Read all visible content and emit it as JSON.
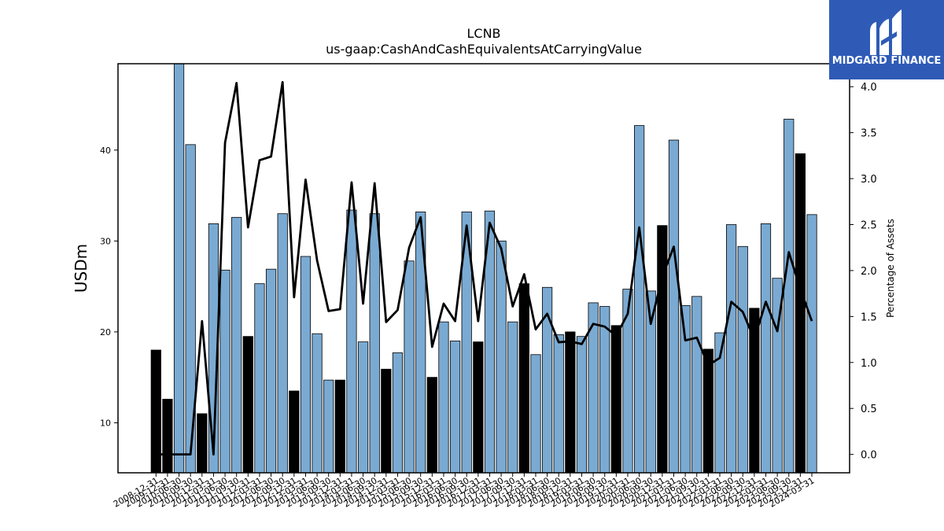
{
  "brand": {
    "name": "MIDGARD FINANCE",
    "bg_color": "#2f5bb7",
    "icon": "midgard-logo-icon"
  },
  "chart_data": {
    "type": "bar",
    "title": "LCNB",
    "subtitle": "us-gaap:CashAndCashEquivalentsAtCarryingValue",
    "ylabel": "USDm",
    "y2label": "Percentage of Assets",
    "ylim": [
      4.5,
      49.5
    ],
    "y2lim": [
      -0.2,
      4.25
    ],
    "yticks": [
      10,
      20,
      30,
      40
    ],
    "y2ticks": [
      0.0,
      0.5,
      1.0,
      1.5,
      2.0,
      2.5,
      3.0,
      3.5,
      4.0
    ],
    "colors": {
      "bar": "#7aaad2",
      "bar_q4": "#000000",
      "line": "#000000"
    },
    "categories": [
      "2008-12-31",
      "2009-12-31",
      "2010-06-30",
      "2010-09-30",
      "2010-12-31",
      "2011-03-31",
      "2011-06-30",
      "2011-09-30",
      "2011-12-31",
      "2012-03-31",
      "2012-06-30",
      "2012-09-30",
      "2012-12-31",
      "2013-03-31",
      "2013-06-30",
      "2013-09-30",
      "2013-12-31",
      "2014-03-31",
      "2014-06-30",
      "2014-09-30",
      "2014-12-31",
      "2015-03-31",
      "2015-06-30",
      "2015-09-30",
      "2015-12-31",
      "2016-03-31",
      "2016-06-30",
      "2016-09-30",
      "2016-12-31",
      "2017-03-31",
      "2017-06-30",
      "2017-09-30",
      "2017-12-31",
      "2018-03-31",
      "2018-06-30",
      "2018-09-30",
      "2018-12-31",
      "2019-03-31",
      "2019-06-30",
      "2019-09-30",
      "2019-12-31",
      "2020-03-31",
      "2020-06-30",
      "2020-09-30",
      "2020-12-31",
      "2021-03-31",
      "2021-06-30",
      "2021-09-30",
      "2021-12-31",
      "2022-03-31",
      "2022-06-30",
      "2022-09-30",
      "2022-12-31",
      "2023-03-31",
      "2023-06-30",
      "2023-09-30",
      "2023-12-31",
      "2024-03-31"
    ],
    "series": [
      {
        "values": [
          18.0,
          12.6,
          49.5,
          40.6,
          11.0,
          31.9,
          26.8,
          32.6,
          19.5,
          25.3,
          26.9,
          33.0,
          13.5,
          28.3,
          19.8,
          14.7,
          14.7,
          33.4,
          18.9,
          33.0,
          15.9,
          17.7,
          27.8,
          33.2,
          15.0,
          21.1,
          19.0,
          33.2,
          18.9,
          33.3,
          30.0,
          21.1,
          25.3,
          17.5,
          24.9,
          19.7,
          20.0,
          19.5,
          23.2,
          22.8,
          20.7,
          24.7,
          42.7,
          24.5,
          31.7,
          41.1,
          22.9,
          23.9,
          18.1,
          19.9,
          31.8,
          29.4,
          22.6,
          31.9,
          25.9,
          43.4,
          39.6,
          32.9
        ]
      },
      {
        "values": [
          0.0,
          0.0,
          0.0,
          0.0,
          1.45,
          0.0,
          3.39,
          4.04,
          2.47,
          3.2,
          3.24,
          4.05,
          1.71,
          2.99,
          2.11,
          1.56,
          1.58,
          2.96,
          1.64,
          2.95,
          1.44,
          1.57,
          2.25,
          2.58,
          1.17,
          1.64,
          1.45,
          2.49,
          1.45,
          2.52,
          2.24,
          1.61,
          1.96,
          1.36,
          1.53,
          1.22,
          1.23,
          1.2,
          1.42,
          1.39,
          1.29,
          1.53,
          2.47,
          1.42,
          1.93,
          2.26,
          1.24,
          1.27,
          0.97,
          1.05,
          1.66,
          1.55,
          1.25,
          1.66,
          1.34,
          2.2,
          1.8,
          1.45
        ]
      }
    ]
  }
}
